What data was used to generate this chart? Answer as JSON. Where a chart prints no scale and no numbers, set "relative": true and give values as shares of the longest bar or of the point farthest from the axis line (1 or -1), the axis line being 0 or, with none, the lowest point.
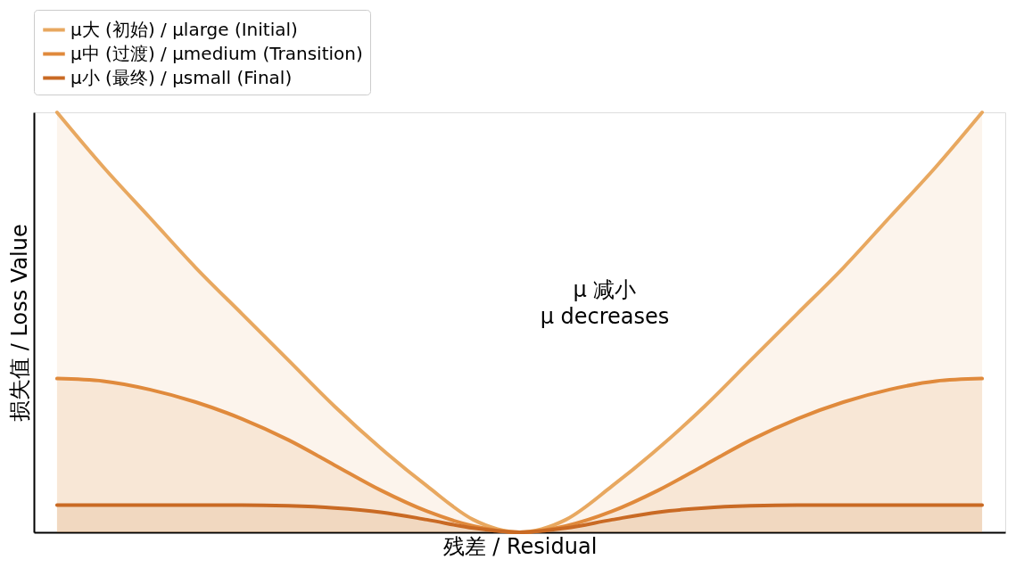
{
  "chart_data": {
    "type": "area",
    "relative": true,
    "xlabel": "残差 / Residual",
    "ylabel": "损失值 / Loss Value",
    "categories": [
      null,
      null,
      null,
      null,
      null,
      null,
      null,
      null,
      null,
      null,
      null,
      null,
      null,
      null,
      null,
      null,
      null,
      null,
      null,
      null,
      null
    ],
    "series": [
      {
        "name": "μ大 (初始) / μlarge (Initial)",
        "color": "#e8a860",
        "values": [
          1.0,
          0.87,
          0.75,
          0.63,
          0.52,
          0.41,
          0.3,
          0.2,
          0.11,
          0.03,
          0,
          0.03,
          0.11,
          0.2,
          0.3,
          0.41,
          0.52,
          0.63,
          0.75,
          0.87,
          1.0
        ]
      },
      {
        "name": "μ中 (过渡) / μmedium (Transition)",
        "color": "#e08a3c",
        "values": [
          0.366,
          0.36,
          0.34,
          0.31,
          0.27,
          0.22,
          0.16,
          0.1,
          0.05,
          0.015,
          0,
          0.015,
          0.05,
          0.1,
          0.16,
          0.22,
          0.27,
          0.31,
          0.34,
          0.36,
          0.366
        ]
      },
      {
        "name": "μ小 (最终) / μsmall (Final)",
        "color": "#c96a24",
        "values": [
          0.065,
          0.065,
          0.065,
          0.065,
          0.065,
          0.063,
          0.058,
          0.048,
          0.03,
          0.01,
          0,
          0.01,
          0.03,
          0.048,
          0.058,
          0.063,
          0.065,
          0.065,
          0.065,
          0.065,
          0.065
        ]
      }
    ],
    "legend": "top",
    "grid": false,
    "annotations": [
      "μ 减小\nμ decreases"
    ]
  }
}
